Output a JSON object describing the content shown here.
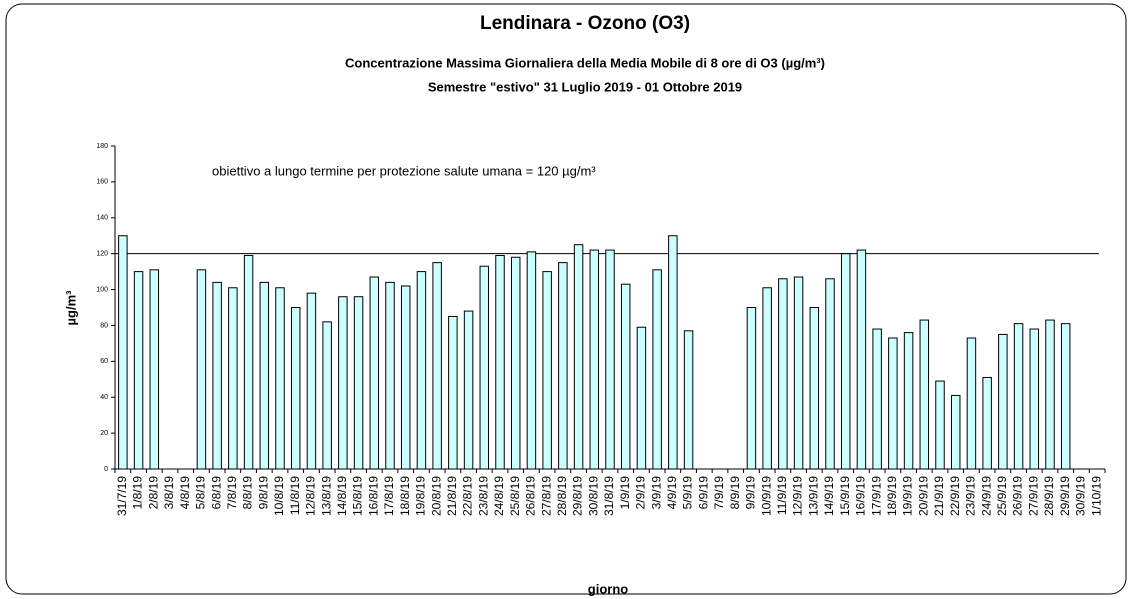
{
  "chart_data": {
    "type": "bar",
    "title": "Lendinara - Ozono (O3)",
    "subtitle": "Concentrazione Massima Giornaliera della Media Mobile di 8 ore di O3 (µg/m³)",
    "subtitle2": "Semestre \"estivo\" 31 Luglio 2019 - 01 Ottobre 2019",
    "annotation": "obiettivo a lungo termine per protezione salute umana = 120 µg/m³",
    "reference_line": 120,
    "x_label": "giorno",
    "y_label": "µg/m³",
    "categories": [
      "31/7/19",
      "1/8/19",
      "2/8/19",
      "3/8/19",
      "4/8/19",
      "5/8/19",
      "6/8/19",
      "7/8/19",
      "8/8/19",
      "9/8/19",
      "10/8/19",
      "11/8/19",
      "12/8/19",
      "13/8/19",
      "14/8/19",
      "15/8/19",
      "16/8/19",
      "17/8/19",
      "18/8/19",
      "19/8/19",
      "20/8/19",
      "21/8/19",
      "22/8/19",
      "23/8/19",
      "24/8/19",
      "25/8/19",
      "26/8/19",
      "27/8/19",
      "28/8/19",
      "29/8/19",
      "30/8/19",
      "31/8/19",
      "1/9/19",
      "2/9/19",
      "3/9/19",
      "4/9/19",
      "5/9/19",
      "6/9/19",
      "7/9/19",
      "8/9/19",
      "9/9/19",
      "10/9/19",
      "11/9/19",
      "12/9/19",
      "13/9/19",
      "14/9/19",
      "15/9/19",
      "16/9/19",
      "17/9/19",
      "18/9/19",
      "19/9/19",
      "20/9/19",
      "21/9/19",
      "22/9/19",
      "23/9/19",
      "24/9/19",
      "25/9/19",
      "26/9/19",
      "27/9/19",
      "28/9/19",
      "29/9/19",
      "30/9/19",
      "1/10/19"
    ],
    "values": [
      130,
      110,
      111,
      null,
      null,
      111,
      104,
      101,
      119,
      104,
      101,
      90,
      98,
      82,
      96,
      96,
      107,
      104,
      102,
      110,
      115,
      85,
      88,
      113,
      119,
      118,
      121,
      110,
      115,
      125,
      122,
      122,
      103,
      79,
      111,
      130,
      77,
      null,
      null,
      null,
      90,
      101,
      106,
      107,
      90,
      106,
      120,
      122,
      78,
      73,
      76,
      83,
      49,
      41,
      73,
      51,
      75,
      81,
      78,
      83,
      81,
      null,
      null
    ],
    "color": "#ccffff",
    "ylim": [
      0,
      180
    ],
    "yticks": [
      0,
      20,
      40,
      60,
      80,
      100,
      120,
      140,
      160,
      180
    ],
    "grid": false
  }
}
